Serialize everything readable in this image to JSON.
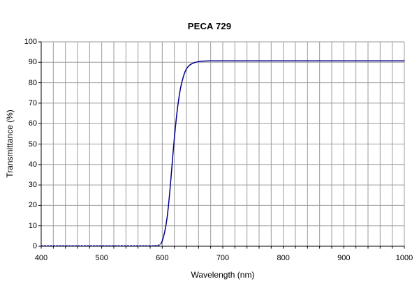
{
  "chart_data": {
    "type": "line",
    "title": "PECA 729",
    "xlabel": "Wavelength (nm)",
    "ylabel": "Transmittance (%)",
    "xlim": [
      400,
      1000
    ],
    "ylim": [
      0,
      100
    ],
    "x_major_ticks": [
      400,
      500,
      600,
      700,
      800,
      900,
      1000
    ],
    "x_minor_step": 20,
    "y_ticks": [
      0,
      10,
      20,
      30,
      40,
      50,
      60,
      70,
      80,
      90,
      100
    ],
    "grid": "on",
    "legend": "none",
    "colors": {
      "line": "#00008B",
      "grid": "#9b9b9b",
      "axis": "#000000",
      "background": "#ffffff",
      "text": "#000000"
    },
    "series": [
      {
        "name": "PECA 729 transmittance",
        "points": [
          [
            400,
            0.2
          ],
          [
            420,
            0.2
          ],
          [
            440,
            0.2
          ],
          [
            460,
            0.2
          ],
          [
            480,
            0.2
          ],
          [
            500,
            0.2
          ],
          [
            520,
            0.2
          ],
          [
            540,
            0.2
          ],
          [
            560,
            0.2
          ],
          [
            575,
            0.2
          ],
          [
            585,
            0.25
          ],
          [
            590,
            0.3
          ],
          [
            595,
            0.6
          ],
          [
            598,
            1.2
          ],
          [
            600,
            2.5
          ],
          [
            602,
            4.5
          ],
          [
            604,
            7
          ],
          [
            606,
            10
          ],
          [
            608,
            14
          ],
          [
            610,
            19
          ],
          [
            612,
            25
          ],
          [
            614,
            32
          ],
          [
            616,
            39
          ],
          [
            618,
            46
          ],
          [
            620,
            53
          ],
          [
            622,
            59
          ],
          [
            624,
            64.5
          ],
          [
            626,
            69.5
          ],
          [
            628,
            73.5
          ],
          [
            630,
            77
          ],
          [
            632,
            79.8
          ],
          [
            634,
            82
          ],
          [
            636,
            84
          ],
          [
            638,
            85.6
          ],
          [
            640,
            86.8
          ],
          [
            643,
            88
          ],
          [
            646,
            88.8
          ],
          [
            650,
            89.5
          ],
          [
            655,
            90
          ],
          [
            660,
            90.3
          ],
          [
            665,
            90.5
          ],
          [
            670,
            90.6
          ],
          [
            680,
            90.7
          ],
          [
            700,
            90.7
          ],
          [
            720,
            90.7
          ],
          [
            750,
            90.7
          ],
          [
            800,
            90.7
          ],
          [
            850,
            90.7
          ],
          [
            900,
            90.7
          ],
          [
            950,
            90.7
          ],
          [
            1000,
            90.7
          ]
        ]
      }
    ]
  }
}
